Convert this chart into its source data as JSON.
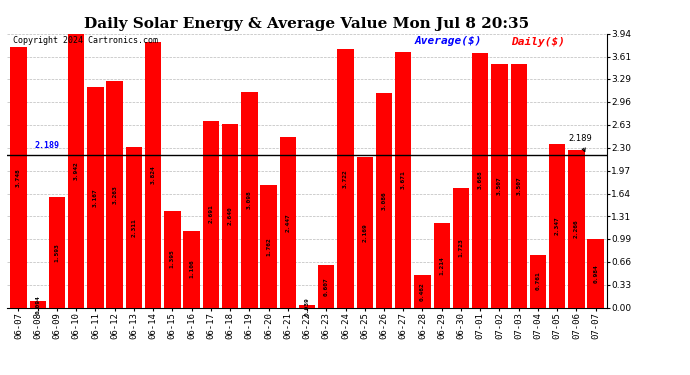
{
  "title": "Daily Solar Energy & Average Value Mon Jul 8 20:35",
  "copyright": "Copyright 2024 Cartronics.com",
  "average_label": "Average($)",
  "daily_label": "Daily($)",
  "average_value": 2.189,
  "bar_color": "#ff0000",
  "background_color": "#ffffff",
  "ylim": [
    0.0,
    3.94
  ],
  "yticks": [
    0.0,
    0.33,
    0.66,
    0.99,
    1.31,
    1.64,
    1.97,
    2.3,
    2.63,
    2.96,
    3.29,
    3.61,
    3.94
  ],
  "grid_color": "#bbbbbb",
  "categories": [
    "06-07",
    "06-08",
    "06-09",
    "06-10",
    "06-11",
    "06-12",
    "06-13",
    "06-14",
    "06-15",
    "06-16",
    "06-17",
    "06-18",
    "06-19",
    "06-20",
    "06-21",
    "06-22",
    "06-23",
    "06-24",
    "06-25",
    "06-26",
    "06-27",
    "06-28",
    "06-29",
    "06-30",
    "07-01",
    "07-02",
    "07-03",
    "07-04",
    "07-05",
    "07-06",
    "07-07"
  ],
  "values": [
    3.748,
    0.094,
    1.593,
    3.942,
    3.167,
    3.263,
    2.311,
    3.824,
    1.395,
    1.106,
    2.691,
    2.64,
    3.098,
    1.762,
    2.447,
    0.039,
    0.607,
    3.722,
    2.169,
    3.086,
    3.671,
    0.462,
    1.214,
    1.723,
    3.668,
    3.507,
    3.507,
    0.761,
    2.347,
    2.266,
    0.984
  ],
  "value_fontsize": 4.5,
  "tick_fontsize": 6.5,
  "title_fontsize": 11,
  "copyright_fontsize": 6,
  "legend_fontsize": 8
}
